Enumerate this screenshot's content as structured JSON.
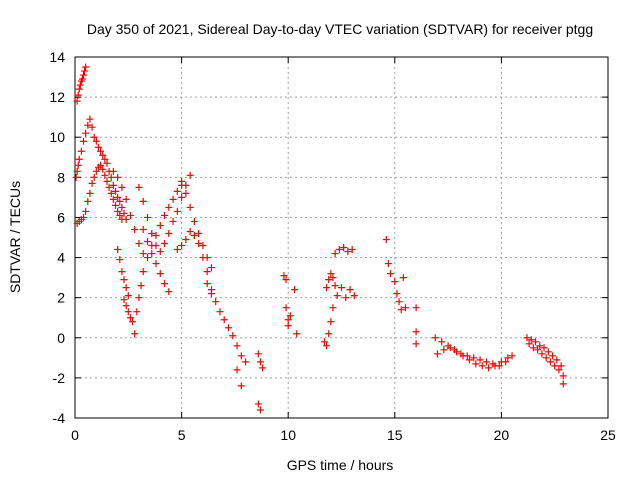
{
  "chart_data": {
    "type": "scatter",
    "title": "Day 350 of 2021, Sidereal Day-to-day VTEC variation (SDTVAR) for receiver ptgg",
    "xlabel": "GPS time / hours",
    "ylabel": "SDTVAR / TECUs",
    "xlim": [
      0,
      25
    ],
    "ylim": [
      -4,
      14
    ],
    "xticks": [
      0,
      5,
      10,
      15,
      20,
      25
    ],
    "yticks": [
      -4,
      -2,
      0,
      2,
      4,
      6,
      8,
      10,
      12,
      14
    ],
    "xtick_labels": [
      "0",
      "5",
      "10",
      "15",
      "20",
      "25"
    ],
    "ytick_labels": [
      "-4",
      "-2",
      "0",
      "2",
      "4",
      "6",
      "8",
      "10",
      "12",
      "14"
    ],
    "grid": true,
    "marker": "+",
    "color": "#ff0000",
    "series": [
      {
        "name": "SDTVAR",
        "x": [
          0.1,
          0.15,
          0.2,
          0.25,
          0.3,
          0.35,
          0.4,
          0.45,
          0.5,
          0.05,
          0.1,
          0.15,
          0.2,
          0.3,
          0.4,
          0.5,
          0.6,
          0.7,
          0.8,
          0.9,
          1.0,
          1.1,
          1.2,
          1.3,
          1.4,
          1.5,
          1.6,
          1.7,
          1.8,
          1.9,
          2.0,
          2.1,
          2.2,
          2.3,
          2.4,
          0.1,
          0.2,
          0.3,
          0.4,
          0.5,
          0.6,
          0.7,
          0.8,
          0.9,
          1.0,
          1.1,
          1.2,
          1.3,
          1.4,
          1.5,
          1.6,
          1.7,
          1.8,
          1.9,
          2.0,
          2.1,
          2.2,
          1.8,
          2.0,
          2.2,
          2.4,
          2.6,
          2.8,
          3.0,
          3.2,
          2.0,
          2.1,
          2.2,
          2.3,
          2.4,
          2.5,
          2.3,
          2.4,
          2.5,
          2.6,
          2.7,
          2.8,
          2.9,
          3.0,
          3.1,
          3.2,
          3.4,
          3.6,
          3.8,
          4.0,
          4.2,
          4.4,
          4.6,
          4.8,
          5.0,
          3.0,
          3.2,
          3.4,
          3.6,
          3.8,
          4.0,
          4.2,
          4.4,
          4.6,
          4.8,
          5.0,
          5.2,
          5.4,
          3.2,
          3.4,
          3.6,
          3.8,
          4.0,
          4.2,
          4.4,
          4.8,
          5.0,
          5.2,
          5.4,
          5.6,
          5.8,
          6.0,
          6.2,
          6.4,
          5.0,
          5.2,
          5.4,
          5.6,
          5.8,
          6.0,
          6.2,
          6.4,
          6.2,
          6.4,
          6.6,
          6.8,
          7.0,
          7.2,
          7.4,
          7.6,
          7.8,
          7.6,
          7.8,
          8.0,
          8.6,
          8.7,
          8.8,
          8.6,
          8.7,
          9.8,
          9.9,
          10.0,
          10.1,
          10.3,
          10.4,
          9.9,
          10.0,
          11.7,
          11.8,
          11.9,
          12.0,
          12.1,
          11.8,
          11.9,
          12.0,
          12.1,
          12.2,
          12.2,
          12.4,
          12.6,
          12.8,
          13.0,
          12.3,
          12.5,
          12.7,
          12.9,
          13.1,
          14.6,
          14.7,
          14.8,
          15.0,
          15.1,
          15.2,
          15.3,
          15.4,
          15.5,
          16.0,
          16.0,
          16.0,
          16.9,
          17.2,
          17.5,
          17.8,
          18.1,
          18.4,
          18.7,
          19.0,
          19.3,
          19.6,
          19.9,
          20.2,
          20.5,
          17.0,
          17.3,
          17.6,
          17.9,
          18.2,
          18.5,
          18.8,
          19.1,
          19.4,
          19.7,
          20.0,
          20.3,
          21.2,
          21.4,
          21.6,
          21.8,
          22.0,
          22.2,
          22.4,
          22.6,
          22.8,
          22.9,
          21.3,
          21.5,
          21.7,
          21.9,
          22.1,
          22.3,
          22.5,
          22.7,
          22.9
        ],
        "y": [
          11.8,
          12.1,
          12.4,
          12.6,
          12.8,
          12.9,
          13.1,
          13.3,
          13.5,
          8.0,
          8.3,
          8.6,
          8.9,
          9.3,
          9.8,
          10.2,
          10.6,
          10.9,
          10.5,
          10.0,
          9.8,
          9.5,
          9.3,
          9.1,
          8.9,
          8.7,
          8.3,
          8.0,
          7.6,
          7.3,
          7.0,
          6.8,
          6.5,
          6.2,
          5.9,
          5.7,
          5.8,
          5.9,
          6.0,
          6.3,
          6.8,
          7.2,
          7.7,
          8.0,
          8.3,
          8.5,
          8.6,
          8.4,
          8.1,
          7.8,
          7.5,
          7.2,
          6.9,
          6.6,
          6.3,
          6.1,
          5.9,
          8.3,
          8.0,
          7.5,
          6.9,
          6.1,
          5.4,
          4.7,
          4.2,
          4.4,
          3.9,
          3.3,
          2.9,
          2.5,
          2.1,
          1.9,
          1.6,
          1.3,
          1.0,
          0.8,
          0.2,
          1.3,
          2.0,
          2.6,
          3.3,
          4.0,
          4.6,
          5.1,
          5.6,
          6.1,
          6.5,
          6.9,
          7.3,
          7.6,
          7.5,
          6.8,
          6.0,
          5.2,
          4.6,
          4.3,
          4.7,
          5.2,
          5.8,
          6.3,
          7.0,
          7.6,
          8.1,
          5.4,
          4.8,
          4.2,
          3.7,
          3.2,
          2.7,
          2.3,
          4.4,
          4.6,
          4.9,
          5.3,
          5.1,
          4.7,
          4.0,
          3.3,
          2.4,
          7.8,
          7.2,
          6.5,
          5.8,
          5.2,
          4.6,
          4.0,
          3.5,
          2.7,
          2.2,
          1.8,
          1.3,
          0.9,
          0.5,
          0.1,
          -0.4,
          -0.9,
          -1.6,
          -2.4,
          -1.2,
          -0.8,
          -1.2,
          -1.5,
          -3.3,
          -3.6,
          3.1,
          2.9,
          0.6,
          1.1,
          2.4,
          0.2,
          1.5,
          0.9,
          -0.2,
          -0.4,
          0.2,
          0.8,
          1.5,
          2.5,
          2.9,
          3.2,
          3.0,
          2.6,
          4.2,
          4.4,
          4.5,
          4.3,
          4.4,
          2.1,
          2.5,
          2.0,
          2.4,
          2.1,
          4.9,
          3.7,
          3.2,
          2.8,
          2.2,
          1.8,
          1.4,
          3.0,
          1.5,
          1.5,
          0.3,
          -0.3,
          0.0,
          -0.2,
          -0.4,
          -0.6,
          -0.8,
          -0.9,
          -1.0,
          -1.1,
          -1.2,
          -1.3,
          -1.4,
          -1.2,
          -0.9,
          -0.8,
          -0.6,
          -0.5,
          -0.7,
          -0.9,
          -1.1,
          -1.3,
          -1.4,
          -1.5,
          -1.4,
          -1.2,
          -1.0,
          0.0,
          -0.1,
          -0.2,
          -0.4,
          -0.5,
          -0.7,
          -0.9,
          -1.1,
          -1.4,
          -2.3,
          -0.3,
          -0.5,
          -0.6,
          -0.8,
          -1.0,
          -1.2,
          -1.4,
          -1.6,
          -1.9
        ]
      }
    ]
  }
}
